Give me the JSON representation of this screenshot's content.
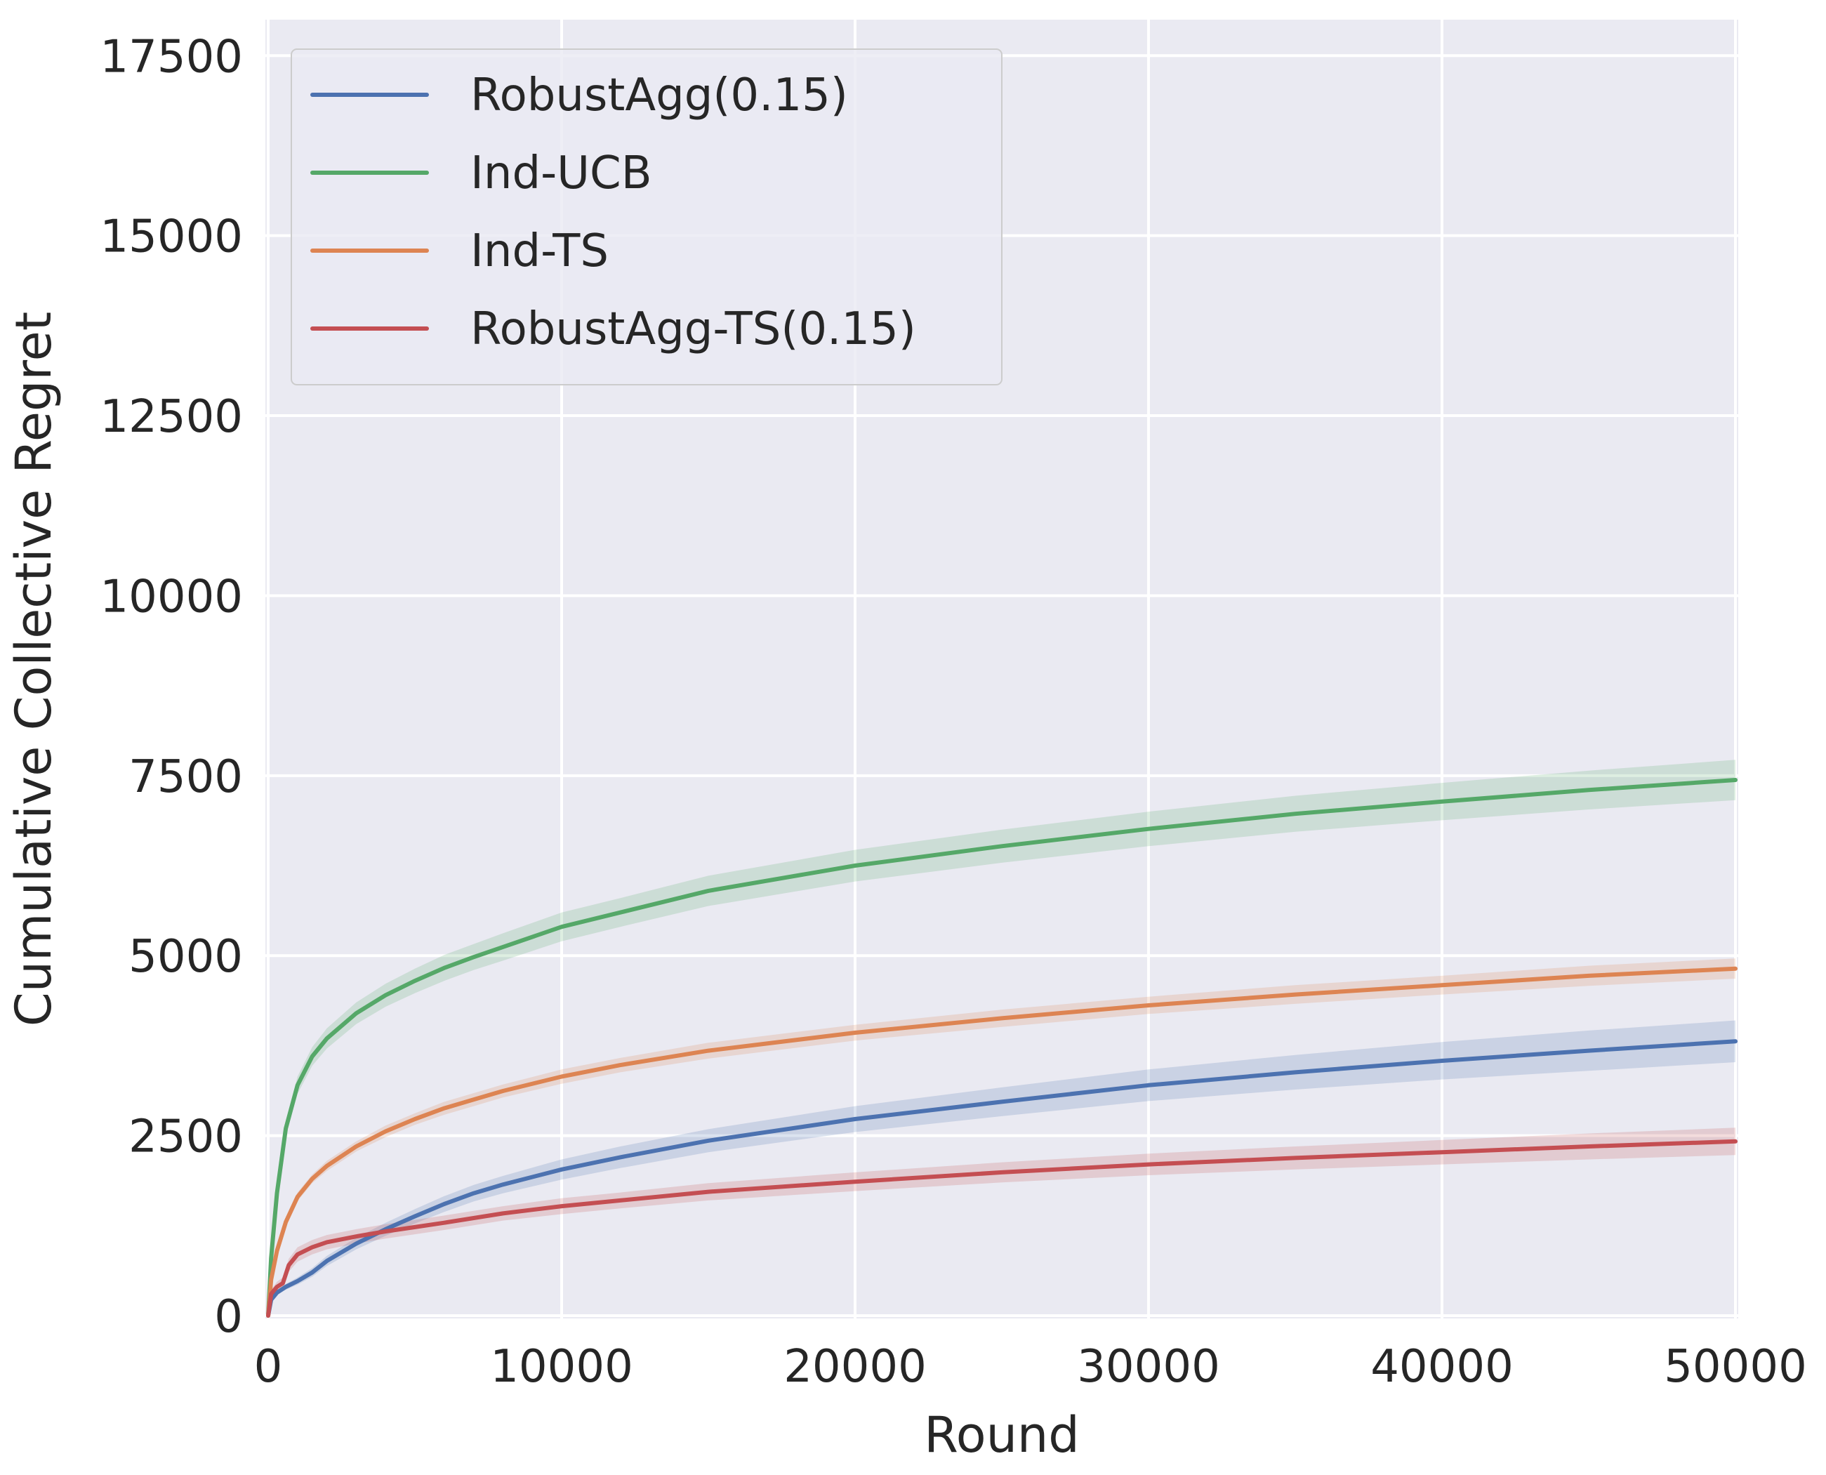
{
  "chart_data": {
    "type": "line",
    "title": "",
    "xlabel": "Round",
    "ylabel": "Cumulative Collective Regret",
    "xlim": [
      0,
      50000
    ],
    "ylim": [
      0,
      18000
    ],
    "xticks": [
      0,
      10000,
      20000,
      30000,
      40000,
      50000
    ],
    "yticks": [
      0,
      2500,
      5000,
      7500,
      10000,
      12500,
      15000,
      17500
    ],
    "grid": true,
    "legend_position": "top-left",
    "background": "#eaeaf2",
    "series": [
      {
        "name": "RobustAgg(0.15)",
        "color": "#4c72b0",
        "x": [
          0,
          100,
          300,
          600,
          1000,
          1500,
          2000,
          3000,
          4000,
          5000,
          6000,
          7000,
          8000,
          10000,
          12000,
          15000,
          20000,
          25000,
          30000,
          35000,
          40000,
          45000,
          50000
        ],
        "y": [
          0,
          220,
          320,
          400,
          480,
          600,
          760,
          1000,
          1200,
          1380,
          1550,
          1700,
          1820,
          2030,
          2200,
          2430,
          2730,
          2970,
          3200,
          3380,
          3540,
          3680,
          3810
        ],
        "band": [
          0,
          20,
          30,
          40,
          50,
          60,
          70,
          80,
          90,
          100,
          110,
          115,
          120,
          140,
          150,
          160,
          180,
          200,
          220,
          240,
          260,
          280,
          290
        ]
      },
      {
        "name": "Ind-UCB",
        "color": "#55a868",
        "x": [
          0,
          100,
          300,
          600,
          1000,
          1500,
          2000,
          3000,
          4000,
          5000,
          6000,
          7000,
          8000,
          10000,
          12000,
          15000,
          20000,
          25000,
          30000,
          35000,
          40000,
          45000,
          50000
        ],
        "y": [
          0,
          800,
          1700,
          2600,
          3200,
          3600,
          3850,
          4200,
          4450,
          4650,
          4830,
          4980,
          5120,
          5400,
          5600,
          5900,
          6250,
          6520,
          6760,
          6970,
          7140,
          7300,
          7440
        ],
        "band": [
          0,
          60,
          90,
          110,
          120,
          130,
          140,
          150,
          160,
          170,
          180,
          180,
          190,
          200,
          200,
          210,
          220,
          230,
          240,
          250,
          260,
          270,
          280
        ]
      },
      {
        "name": "Ind-TS",
        "color": "#dd8452",
        "x": [
          0,
          100,
          300,
          600,
          1000,
          1500,
          2000,
          3000,
          4000,
          5000,
          6000,
          7000,
          8000,
          10000,
          12000,
          15000,
          20000,
          25000,
          30000,
          35000,
          40000,
          45000,
          50000
        ],
        "y": [
          0,
          500,
          900,
          1300,
          1650,
          1900,
          2080,
          2350,
          2560,
          2730,
          2880,
          3000,
          3120,
          3320,
          3480,
          3680,
          3930,
          4130,
          4310,
          4460,
          4590,
          4720,
          4820
        ],
        "band": [
          0,
          30,
          40,
          50,
          60,
          60,
          70,
          70,
          80,
          80,
          90,
          90,
          90,
          100,
          100,
          110,
          110,
          120,
          120,
          130,
          130,
          140,
          140
        ]
      },
      {
        "name": "RobustAgg-TS(0.15)",
        "color": "#c44e52",
        "x": [
          0,
          100,
          300,
          500,
          700,
          1000,
          1500,
          2000,
          3000,
          4000,
          5000,
          6000,
          8000,
          10000,
          12000,
          15000,
          20000,
          25000,
          30000,
          35000,
          40000,
          45000,
          50000
        ],
        "y": [
          0,
          300,
          400,
          450,
          700,
          850,
          950,
          1020,
          1100,
          1170,
          1230,
          1290,
          1420,
          1520,
          1600,
          1720,
          1860,
          1990,
          2100,
          2190,
          2270,
          2350,
          2420
        ],
        "band": [
          0,
          60,
          70,
          80,
          90,
          100,
          100,
          100,
          100,
          100,
          100,
          100,
          100,
          110,
          110,
          120,
          130,
          140,
          150,
          160,
          170,
          180,
          190
        ]
      }
    ]
  }
}
